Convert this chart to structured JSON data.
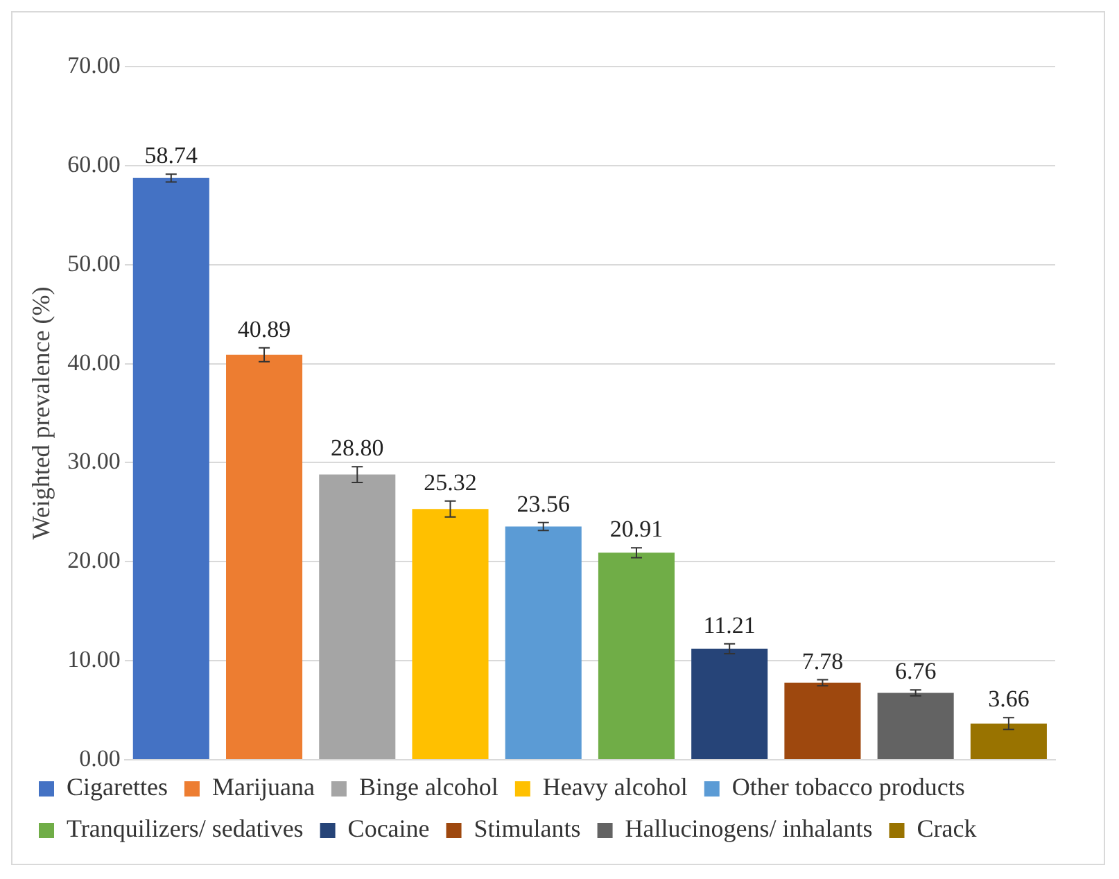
{
  "chart_data": {
    "type": "bar",
    "ylabel": "Weighted prevalence (%)",
    "categories": [
      null,
      null,
      null,
      null,
      null,
      null,
      null,
      null,
      null,
      null
    ],
    "series": [
      {
        "name": "Cigarettes",
        "color": "#4472c4",
        "values": [
          58.74,
          null,
          null,
          null,
          null,
          null,
          null,
          null,
          null,
          null
        ],
        "errors": [
          0.4,
          null,
          null,
          null,
          null,
          null,
          null,
          null,
          null,
          null
        ],
        "value_labels": [
          "58.74",
          null,
          null,
          null,
          null,
          null,
          null,
          null,
          null,
          null
        ]
      },
      {
        "name": "Marijuana",
        "color": "#ed7d31",
        "values": [
          null,
          40.89,
          null,
          null,
          null,
          null,
          null,
          null,
          null,
          null
        ],
        "errors": [
          null,
          0.7,
          null,
          null,
          null,
          null,
          null,
          null,
          null,
          null
        ],
        "value_labels": [
          null,
          "40.89",
          null,
          null,
          null,
          null,
          null,
          null,
          null,
          null
        ]
      },
      {
        "name": "Binge alcohol",
        "color": "#a5a5a5",
        "values": [
          null,
          null,
          28.8,
          null,
          null,
          null,
          null,
          null,
          null,
          null
        ],
        "errors": [
          null,
          null,
          0.8,
          null,
          null,
          null,
          null,
          null,
          null,
          null
        ],
        "value_labels": [
          null,
          null,
          "28.80",
          null,
          null,
          null,
          null,
          null,
          null,
          null
        ]
      },
      {
        "name": "Heavy alcohol",
        "color": "#ffc000",
        "values": [
          null,
          null,
          null,
          25.32,
          null,
          null,
          null,
          null,
          null,
          null
        ],
        "errors": [
          null,
          null,
          null,
          0.8,
          null,
          null,
          null,
          null,
          null,
          null
        ],
        "value_labels": [
          null,
          null,
          null,
          "25.32",
          null,
          null,
          null,
          null,
          null,
          null
        ]
      },
      {
        "name": "Other tobacco products",
        "color": "#5b9bd5",
        "values": [
          null,
          null,
          null,
          null,
          23.56,
          null,
          null,
          null,
          null,
          null
        ],
        "errors": [
          null,
          null,
          null,
          null,
          0.4,
          null,
          null,
          null,
          null,
          null
        ],
        "value_labels": [
          null,
          null,
          null,
          null,
          "23.56",
          null,
          null,
          null,
          null,
          null
        ]
      },
      {
        "name": "Tranquilizers/ sedatives",
        "color": "#70ad47",
        "values": [
          null,
          null,
          null,
          null,
          null,
          20.91,
          null,
          null,
          null,
          null
        ],
        "errors": [
          null,
          null,
          null,
          null,
          null,
          0.5,
          null,
          null,
          null,
          null
        ],
        "value_labels": [
          null,
          null,
          null,
          null,
          null,
          "20.91",
          null,
          null,
          null,
          null
        ]
      },
      {
        "name": "Cocaine",
        "color": "#264478",
        "values": [
          null,
          null,
          null,
          null,
          null,
          null,
          11.21,
          null,
          null,
          null
        ],
        "errors": [
          null,
          null,
          null,
          null,
          null,
          null,
          0.5,
          null,
          null,
          null
        ],
        "value_labels": [
          null,
          null,
          null,
          null,
          null,
          null,
          "11.21",
          null,
          null,
          null
        ]
      },
      {
        "name": "Stimulants",
        "color": "#9e480e",
        "values": [
          null,
          null,
          null,
          null,
          null,
          null,
          null,
          7.78,
          null,
          null
        ],
        "errors": [
          null,
          null,
          null,
          null,
          null,
          null,
          null,
          0.3,
          null,
          null
        ],
        "value_labels": [
          null,
          null,
          null,
          null,
          null,
          null,
          null,
          "7.78",
          null,
          null
        ]
      },
      {
        "name": "Hallucinogens/ inhalants",
        "color": "#636363",
        "values": [
          null,
          null,
          null,
          null,
          null,
          null,
          null,
          null,
          6.76,
          null
        ],
        "errors": [
          null,
          null,
          null,
          null,
          null,
          null,
          null,
          null,
          0.3,
          null
        ],
        "value_labels": [
          null,
          null,
          null,
          null,
          null,
          null,
          null,
          null,
          "6.76",
          null
        ]
      },
      {
        "name": "Crack",
        "color": "#997300",
        "values": [
          null,
          null,
          null,
          null,
          null,
          null,
          null,
          null,
          null,
          3.66
        ],
        "errors": [
          null,
          null,
          null,
          null,
          null,
          null,
          null,
          null,
          null,
          0.6
        ],
        "value_labels": [
          null,
          null,
          null,
          null,
          null,
          null,
          null,
          null,
          null,
          "3.66"
        ]
      }
    ],
    "ylim": [
      0,
      70
    ],
    "yticks": [
      {
        "value": 0,
        "label": "0.00"
      },
      {
        "value": 10,
        "label": "10.00"
      },
      {
        "value": 20,
        "label": "20.00"
      },
      {
        "value": 30,
        "label": "30.00"
      },
      {
        "value": 40,
        "label": "40.00"
      },
      {
        "value": 50,
        "label": "50.00"
      },
      {
        "value": 60,
        "label": "60.00"
      },
      {
        "value": 70,
        "label": "70.00"
      }
    ],
    "grid": "y",
    "legend": "bottom",
    "tick_labels": "y"
  }
}
